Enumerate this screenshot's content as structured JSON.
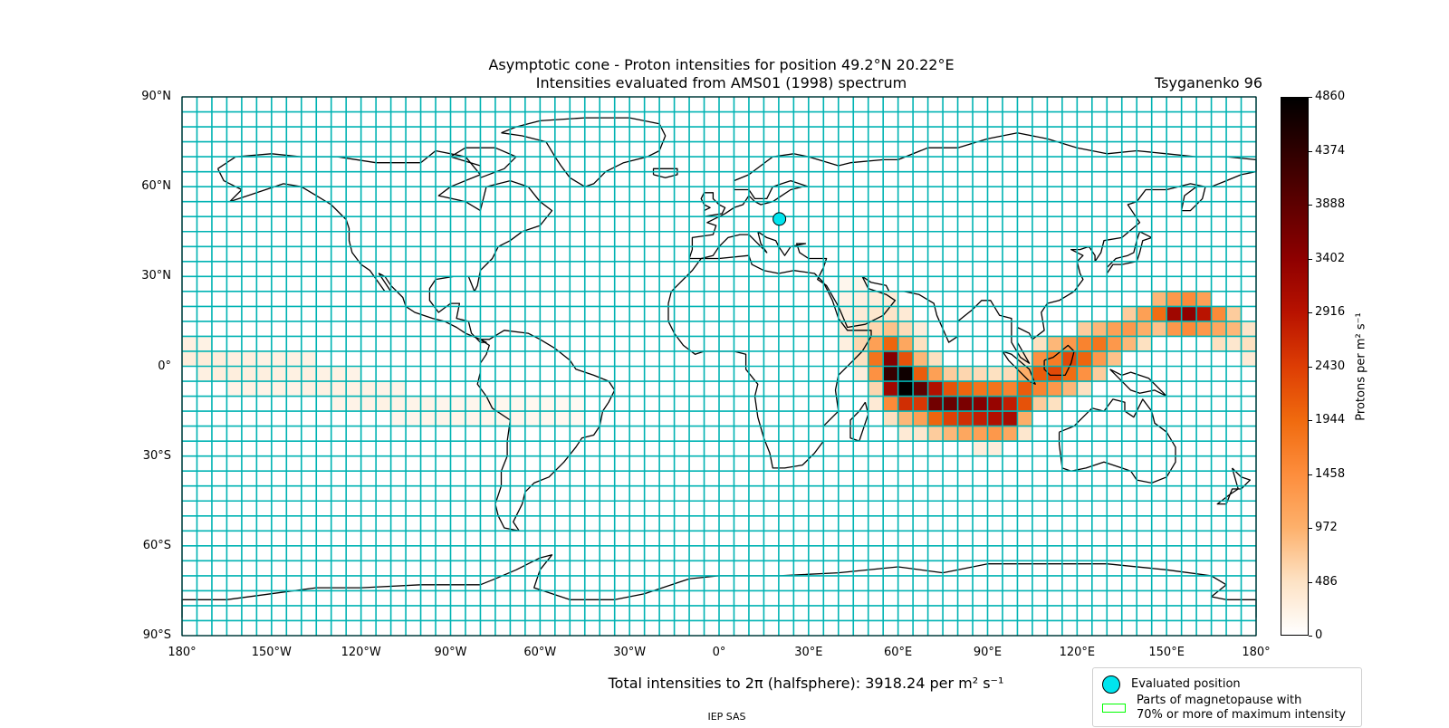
{
  "header": {
    "title_line1": "Asymptotic cone - Proton intensities for position 49.2°N 20.22°E",
    "title_line2": "Intensities evaluated from AMS01 (1998) spectrum",
    "model": "Tsyganenko 96"
  },
  "map": {
    "projection": "equirectangular",
    "lon_range": [
      -180,
      180
    ],
    "lat_range": [
      -90,
      90
    ],
    "grid_color": "#00b3b3",
    "grid_cell_deg": [
      5,
      5
    ],
    "lat_ticks": [
      "90°N",
      "60°N",
      "30°N",
      "0°",
      "30°S",
      "60°S",
      "90°S"
    ],
    "lon_ticks": [
      "180°",
      "150°W",
      "120°W",
      "90°W",
      "60°W",
      "30°W",
      "0°",
      "30°E",
      "60°E",
      "90°E",
      "120°E",
      "150°E",
      "180°"
    ],
    "evaluated_position": {
      "lat": 49.2,
      "lon": 20.22,
      "color": "#00e5ee"
    }
  },
  "chart_data": {
    "type": "heatmap",
    "title": "Asymptotic cone - Proton intensities for position 49.2°N 20.22°E",
    "subtitle": "Intensities evaluated from AMS01 (1998) spectrum",
    "units": "Protons per m^2 s^-1",
    "xlim": [
      -180,
      180
    ],
    "ylim": [
      -90,
      90
    ],
    "cell_size_deg": 5,
    "colorbar": {
      "min": 0,
      "max": 4860,
      "ticks": [
        "0",
        "486",
        "972",
        "1458",
        "1944",
        "2430",
        "2916",
        "3402",
        "3888",
        "4374",
        "4860"
      ],
      "label": "Protons per m² s⁻¹"
    },
    "cells": [
      {
        "lon": -180,
        "lat": 5,
        "v": 250
      },
      {
        "lon": -180,
        "lat": 0,
        "v": 300
      },
      {
        "lon": -175,
        "lat": 5,
        "v": 220
      },
      {
        "lon": -175,
        "lat": 0,
        "v": 320
      },
      {
        "lon": -175,
        "lat": -5,
        "v": 250
      },
      {
        "lon": -170,
        "lat": 0,
        "v": 300
      },
      {
        "lon": -170,
        "lat": -5,
        "v": 280
      },
      {
        "lon": -165,
        "lat": 0,
        "v": 250
      },
      {
        "lon": -165,
        "lat": -5,
        "v": 280
      },
      {
        "lon": -165,
        "lat": -10,
        "v": 200
      },
      {
        "lon": -160,
        "lat": 0,
        "v": 260
      },
      {
        "lon": -160,
        "lat": -5,
        "v": 260
      },
      {
        "lon": -160,
        "lat": -10,
        "v": 220
      },
      {
        "lon": -155,
        "lat": 0,
        "v": 220
      },
      {
        "lon": -155,
        "lat": -5,
        "v": 260
      },
      {
        "lon": -155,
        "lat": -10,
        "v": 200
      },
      {
        "lon": -150,
        "lat": 0,
        "v": 240
      },
      {
        "lon": -150,
        "lat": -5,
        "v": 250
      },
      {
        "lon": -150,
        "lat": -10,
        "v": 220
      },
      {
        "lon": -145,
        "lat": 0,
        "v": 220
      },
      {
        "lon": -145,
        "lat": -5,
        "v": 240
      },
      {
        "lon": -145,
        "lat": -10,
        "v": 200
      },
      {
        "lon": -140,
        "lat": 0,
        "v": 220
      },
      {
        "lon": -140,
        "lat": -5,
        "v": 250
      },
      {
        "lon": -140,
        "lat": -10,
        "v": 230
      },
      {
        "lon": -135,
        "lat": -5,
        "v": 220
      },
      {
        "lon": -135,
        "lat": -10,
        "v": 240
      },
      {
        "lon": -130,
        "lat": -5,
        "v": 220
      },
      {
        "lon": -130,
        "lat": -10,
        "v": 240
      },
      {
        "lon": -130,
        "lat": -15,
        "v": 180
      },
      {
        "lon": -125,
        "lat": -5,
        "v": 200
      },
      {
        "lon": -125,
        "lat": -10,
        "v": 220
      },
      {
        "lon": -125,
        "lat": -15,
        "v": 200
      },
      {
        "lon": -120,
        "lat": -10,
        "v": 220
      },
      {
        "lon": -120,
        "lat": -15,
        "v": 200
      },
      {
        "lon": -115,
        "lat": -10,
        "v": 200
      },
      {
        "lon": -115,
        "lat": -15,
        "v": 220
      },
      {
        "lon": -110,
        "lat": -10,
        "v": 180
      },
      {
        "lon": -110,
        "lat": -15,
        "v": 200
      },
      {
        "lon": -110,
        "lat": -20,
        "v": 160
      },
      {
        "lon": -105,
        "lat": -15,
        "v": 180
      },
      {
        "lon": -105,
        "lat": -20,
        "v": 160
      },
      {
        "lon": -100,
        "lat": -15,
        "v": 180
      },
      {
        "lon": -100,
        "lat": -20,
        "v": 170
      },
      {
        "lon": -95,
        "lat": -15,
        "v": 160
      },
      {
        "lon": -95,
        "lat": -20,
        "v": 180
      },
      {
        "lon": -90,
        "lat": -15,
        "v": 150
      },
      {
        "lon": -90,
        "lat": -20,
        "v": 170
      },
      {
        "lon": -85,
        "lat": -15,
        "v": 150
      },
      {
        "lon": -85,
        "lat": -20,
        "v": 160
      },
      {
        "lon": -80,
        "lat": -15,
        "v": 150
      },
      {
        "lon": -80,
        "lat": -20,
        "v": 150
      },
      {
        "lon": -75,
        "lat": -15,
        "v": 140
      },
      {
        "lon": -75,
        "lat": -20,
        "v": 150
      },
      {
        "lon": -70,
        "lat": -15,
        "v": 130
      },
      {
        "lon": -70,
        "lat": -20,
        "v": 150
      },
      {
        "lon": -65,
        "lat": -15,
        "v": 120
      },
      {
        "lon": -65,
        "lat": -20,
        "v": 140
      },
      {
        "lon": -60,
        "lat": -15,
        "v": 120
      },
      {
        "lon": -60,
        "lat": -20,
        "v": 130
      },
      {
        "lon": -55,
        "lat": -15,
        "v": 110
      },
      {
        "lon": -55,
        "lat": -20,
        "v": 120
      },
      {
        "lon": -50,
        "lat": -15,
        "v": 100
      },
      {
        "lon": -50,
        "lat": -20,
        "v": 110
      },
      {
        "lon": 40,
        "lat": 25,
        "v": 150
      },
      {
        "lon": 40,
        "lat": 20,
        "v": 200
      },
      {
        "lon": 40,
        "lat": 15,
        "v": 250
      },
      {
        "lon": 40,
        "lat": 10,
        "v": 300
      },
      {
        "lon": 40,
        "lat": 5,
        "v": 260
      },
      {
        "lon": 45,
        "lat": 25,
        "v": 180
      },
      {
        "lon": 45,
        "lat": 20,
        "v": 250
      },
      {
        "lon": 45,
        "lat": 15,
        "v": 330
      },
      {
        "lon": 45,
        "lat": 10,
        "v": 420
      },
      {
        "lon": 45,
        "lat": 5,
        "v": 600
      },
      {
        "lon": 45,
        "lat": 0,
        "v": 500
      },
      {
        "lon": 45,
        "lat": -5,
        "v": 300
      },
      {
        "lon": 50,
        "lat": 20,
        "v": 300
      },
      {
        "lon": 50,
        "lat": 15,
        "v": 400
      },
      {
        "lon": 50,
        "lat": 10,
        "v": 600
      },
      {
        "lon": 50,
        "lat": 5,
        "v": 1200
      },
      {
        "lon": 50,
        "lat": 0,
        "v": 1800
      },
      {
        "lon": 50,
        "lat": -5,
        "v": 1400
      },
      {
        "lon": 50,
        "lat": -10,
        "v": 600
      },
      {
        "lon": 50,
        "lat": -15,
        "v": 350
      },
      {
        "lon": 55,
        "lat": 20,
        "v": 320
      },
      {
        "lon": 55,
        "lat": 15,
        "v": 450
      },
      {
        "lon": 55,
        "lat": 10,
        "v": 800
      },
      {
        "lon": 55,
        "lat": 5,
        "v": 2000
      },
      {
        "lon": 55,
        "lat": 0,
        "v": 3500
      },
      {
        "lon": 55,
        "lat": -5,
        "v": 4300
      },
      {
        "lon": 55,
        "lat": -10,
        "v": 3200
      },
      {
        "lon": 55,
        "lat": -15,
        "v": 1500
      },
      {
        "lon": 55,
        "lat": -20,
        "v": 500
      },
      {
        "lon": 60,
        "lat": 15,
        "v": 350
      },
      {
        "lon": 60,
        "lat": 10,
        "v": 550
      },
      {
        "lon": 60,
        "lat": 5,
        "v": 1100
      },
      {
        "lon": 60,
        "lat": 0,
        "v": 2200
      },
      {
        "lon": 60,
        "lat": -5,
        "v": 4700
      },
      {
        "lon": 60,
        "lat": -10,
        "v": 4860
      },
      {
        "lon": 60,
        "lat": -15,
        "v": 2600
      },
      {
        "lon": 60,
        "lat": -20,
        "v": 900
      },
      {
        "lon": 60,
        "lat": -25,
        "v": 350
      },
      {
        "lon": 65,
        "lat": 10,
        "v": 300
      },
      {
        "lon": 65,
        "lat": 5,
        "v": 500
      },
      {
        "lon": 65,
        "lat": 0,
        "v": 900
      },
      {
        "lon": 65,
        "lat": -5,
        "v": 2100
      },
      {
        "lon": 65,
        "lat": -10,
        "v": 3900
      },
      {
        "lon": 65,
        "lat": -15,
        "v": 2500
      },
      {
        "lon": 65,
        "lat": -20,
        "v": 1200
      },
      {
        "lon": 65,
        "lat": -25,
        "v": 400
      },
      {
        "lon": 70,
        "lat": 0,
        "v": 500
      },
      {
        "lon": 70,
        "lat": -5,
        "v": 1200
      },
      {
        "lon": 70,
        "lat": -10,
        "v": 3000
      },
      {
        "lon": 70,
        "lat": -15,
        "v": 3700
      },
      {
        "lon": 70,
        "lat": -20,
        "v": 2000
      },
      {
        "lon": 70,
        "lat": -25,
        "v": 700
      },
      {
        "lon": 75,
        "lat": -5,
        "v": 700
      },
      {
        "lon": 75,
        "lat": -10,
        "v": 2200
      },
      {
        "lon": 75,
        "lat": -15,
        "v": 3800
      },
      {
        "lon": 75,
        "lat": -20,
        "v": 2400
      },
      {
        "lon": 75,
        "lat": -25,
        "v": 900
      },
      {
        "lon": 80,
        "lat": -5,
        "v": 600
      },
      {
        "lon": 80,
        "lat": -10,
        "v": 2000
      },
      {
        "lon": 80,
        "lat": -15,
        "v": 3600
      },
      {
        "lon": 80,
        "lat": -20,
        "v": 2600
      },
      {
        "lon": 80,
        "lat": -25,
        "v": 1100
      },
      {
        "lon": 85,
        "lat": -5,
        "v": 550
      },
      {
        "lon": 85,
        "lat": -10,
        "v": 1800
      },
      {
        "lon": 85,
        "lat": -15,
        "v": 3500
      },
      {
        "lon": 85,
        "lat": -20,
        "v": 2800
      },
      {
        "lon": 85,
        "lat": -25,
        "v": 1200
      },
      {
        "lon": 85,
        "lat": -30,
        "v": 300
      },
      {
        "lon": 90,
        "lat": -5,
        "v": 500
      },
      {
        "lon": 90,
        "lat": -10,
        "v": 1800
      },
      {
        "lon": 90,
        "lat": -15,
        "v": 3300
      },
      {
        "lon": 90,
        "lat": -20,
        "v": 3000
      },
      {
        "lon": 90,
        "lat": -25,
        "v": 1300
      },
      {
        "lon": 90,
        "lat": -30,
        "v": 300
      },
      {
        "lon": 95,
        "lat": -5,
        "v": 550
      },
      {
        "lon": 95,
        "lat": -10,
        "v": 1600
      },
      {
        "lon": 95,
        "lat": -15,
        "v": 2800
      },
      {
        "lon": 95,
        "lat": -20,
        "v": 3100
      },
      {
        "lon": 95,
        "lat": -25,
        "v": 1100
      },
      {
        "lon": 100,
        "lat": 0,
        "v": 400
      },
      {
        "lon": 100,
        "lat": -5,
        "v": 1000
      },
      {
        "lon": 100,
        "lat": -10,
        "v": 2100
      },
      {
        "lon": 100,
        "lat": -15,
        "v": 2200
      },
      {
        "lon": 100,
        "lat": -20,
        "v": 1000
      },
      {
        "lon": 100,
        "lat": -25,
        "v": 400
      },
      {
        "lon": 105,
        "lat": 5,
        "v": 500
      },
      {
        "lon": 105,
        "lat": 0,
        "v": 1400
      },
      {
        "lon": 105,
        "lat": -5,
        "v": 2100
      },
      {
        "lon": 105,
        "lat": -10,
        "v": 1600
      },
      {
        "lon": 105,
        "lat": -15,
        "v": 700
      },
      {
        "lon": 110,
        "lat": 5,
        "v": 900
      },
      {
        "lon": 110,
        "lat": 0,
        "v": 1700
      },
      {
        "lon": 110,
        "lat": -5,
        "v": 2300
      },
      {
        "lon": 110,
        "lat": -10,
        "v": 1300
      },
      {
        "lon": 110,
        "lat": -15,
        "v": 500
      },
      {
        "lon": 115,
        "lat": 5,
        "v": 1300
      },
      {
        "lon": 115,
        "lat": 0,
        "v": 2300
      },
      {
        "lon": 115,
        "lat": -5,
        "v": 1900
      },
      {
        "lon": 115,
        "lat": -10,
        "v": 900
      },
      {
        "lon": 120,
        "lat": 10,
        "v": 700
      },
      {
        "lon": 120,
        "lat": 5,
        "v": 1600
      },
      {
        "lon": 120,
        "lat": 0,
        "v": 2000
      },
      {
        "lon": 120,
        "lat": -5,
        "v": 1400
      },
      {
        "lon": 120,
        "lat": -10,
        "v": 500
      },
      {
        "lon": 125,
        "lat": 10,
        "v": 900
      },
      {
        "lon": 125,
        "lat": 5,
        "v": 1800
      },
      {
        "lon": 125,
        "lat": 0,
        "v": 1300
      },
      {
        "lon": 125,
        "lat": -5,
        "v": 700
      },
      {
        "lon": 130,
        "lat": 10,
        "v": 1200
      },
      {
        "lon": 130,
        "lat": 5,
        "v": 1300
      },
      {
        "lon": 130,
        "lat": 0,
        "v": 800
      },
      {
        "lon": 135,
        "lat": 15,
        "v": 700
      },
      {
        "lon": 135,
        "lat": 10,
        "v": 1300
      },
      {
        "lon": 135,
        "lat": 5,
        "v": 900
      },
      {
        "lon": 140,
        "lat": 15,
        "v": 1200
      },
      {
        "lon": 140,
        "lat": 10,
        "v": 1000
      },
      {
        "lon": 140,
        "lat": 5,
        "v": 500
      },
      {
        "lon": 145,
        "lat": 20,
        "v": 900
      },
      {
        "lon": 145,
        "lat": 15,
        "v": 1900
      },
      {
        "lon": 145,
        "lat": 10,
        "v": 800
      },
      {
        "lon": 150,
        "lat": 20,
        "v": 1300
      },
      {
        "lon": 150,
        "lat": 15,
        "v": 3200
      },
      {
        "lon": 150,
        "lat": 10,
        "v": 1300
      },
      {
        "lon": 155,
        "lat": 20,
        "v": 1500
      },
      {
        "lon": 155,
        "lat": 15,
        "v": 3400
      },
      {
        "lon": 155,
        "lat": 10,
        "v": 1500
      },
      {
        "lon": 160,
        "lat": 20,
        "v": 1200
      },
      {
        "lon": 160,
        "lat": 15,
        "v": 2900
      },
      {
        "lon": 160,
        "lat": 10,
        "v": 1300
      },
      {
        "lon": 165,
        "lat": 15,
        "v": 1500
      },
      {
        "lon": 165,
        "lat": 10,
        "v": 1100
      },
      {
        "lon": 165,
        "lat": 5,
        "v": 500
      },
      {
        "lon": 170,
        "lat": 15,
        "v": 700
      },
      {
        "lon": 170,
        "lat": 10,
        "v": 900
      },
      {
        "lon": 170,
        "lat": 5,
        "v": 400
      },
      {
        "lon": 175,
        "lat": 10,
        "v": 450
      },
      {
        "lon": 175,
        "lat": 5,
        "v": 500
      },
      {
        "lon": 175,
        "lat": 0,
        "v": 350
      }
    ]
  },
  "colorbar_label": "Protons per m² s⁻¹",
  "summary": {
    "total_intensities": "Total intensities to 2π (halfsphere): 3918.24 per m² s⁻¹"
  },
  "legend": {
    "items": [
      {
        "label": "Evaluated position",
        "color": "#00e5ee"
      },
      {
        "label_line1": "Parts of magnetopause with",
        "label_line2": "70% or more of maximum intensity",
        "color": "#00ff00"
      }
    ]
  },
  "footer": {
    "credit": "IEP SAS"
  }
}
